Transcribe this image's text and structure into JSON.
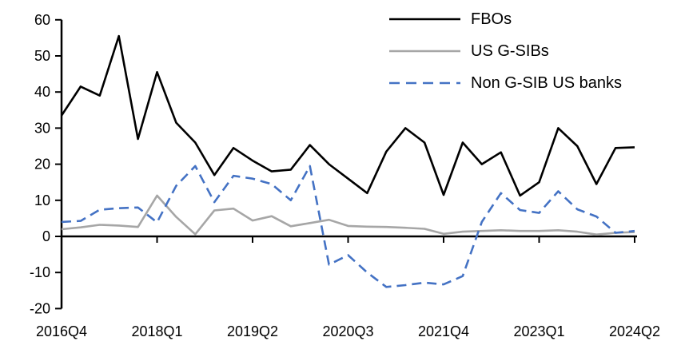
{
  "chart_data": {
    "type": "line",
    "title": "",
    "xlabel": "",
    "ylabel": "",
    "ylim": [
      -20,
      60
    ],
    "grid": false,
    "legend_position": "top-right",
    "axis_color": "#000000",
    "y_ticks": [
      60,
      50,
      40,
      30,
      20,
      10,
      0,
      -10,
      -20
    ],
    "x_tick_labels": [
      "2016Q4",
      "2018Q1",
      "2019Q2",
      "2020Q3",
      "2021Q4",
      "2023Q1",
      "2024Q2"
    ],
    "x_tick_indices": [
      0,
      5,
      10,
      15,
      20,
      25,
      30
    ],
    "x_categories": [
      "2016Q4",
      "2017Q1",
      "2017Q2",
      "2017Q3",
      "2017Q4",
      "2018Q1",
      "2018Q2",
      "2018Q3",
      "2018Q4",
      "2019Q1",
      "2019Q2",
      "2019Q3",
      "2019Q4",
      "2020Q1",
      "2020Q2",
      "2020Q3",
      "2020Q4",
      "2021Q1",
      "2021Q2",
      "2021Q3",
      "2021Q4",
      "2022Q1",
      "2022Q2",
      "2022Q3",
      "2022Q4",
      "2023Q1",
      "2023Q2",
      "2023Q3",
      "2023Q4",
      "2024Q1",
      "2024Q2"
    ],
    "series": [
      {
        "name": "FBOs",
        "color": "#000000",
        "style": "solid",
        "values": [
          33.5,
          41.5,
          39,
          55.5,
          27,
          45.5,
          31.5,
          26,
          17,
          24.5,
          21,
          18,
          18.5,
          25.3,
          20,
          16,
          12,
          23.5,
          30,
          26,
          11.5,
          26,
          20,
          23.3,
          11.3,
          15,
          30,
          25,
          14.5,
          24.5,
          24.7
        ]
      },
      {
        "name": "US G-SIBs",
        "color": "#A6A6A6",
        "style": "solid",
        "values": [
          2,
          2.5,
          3.2,
          3,
          2.6,
          11.3,
          5.4,
          0.6,
          7.2,
          7.7,
          4.4,
          5.6,
          2.8,
          3.7,
          4.6,
          2.9,
          2.7,
          2.6,
          2.4,
          2.1,
          0.7,
          1.3,
          1.5,
          1.7,
          1.5,
          1.5,
          1.7,
          1.3,
          0.5,
          1,
          1.2
        ]
      },
      {
        "name": "Non G-SIB US banks",
        "color": "#4472C4",
        "style": "dashed",
        "values": [
          4,
          4.3,
          7.4,
          7.8,
          8,
          3.9,
          14,
          19.5,
          9.5,
          16.8,
          16,
          14.5,
          10,
          19.5,
          -7.8,
          -5.2,
          -10,
          -14,
          -13.5,
          -12.8,
          -13.3,
          -11,
          4,
          12,
          7.3,
          6.5,
          12.5,
          7.5,
          5.5,
          1,
          1.5
        ]
      }
    ]
  }
}
